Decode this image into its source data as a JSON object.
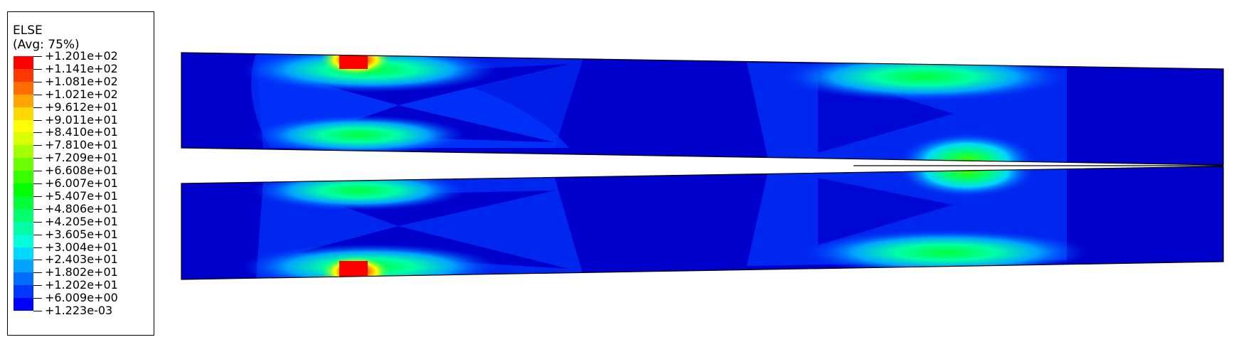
{
  "legend": {
    "variable": "ELSE",
    "averaging": "(Avg: 75%)",
    "ticks": [
      "+1.201e+02",
      "+1.141e+02",
      "+1.081e+02",
      "+1.021e+02",
      "+9.612e+01",
      "+9.011e+01",
      "+8.410e+01",
      "+7.810e+01",
      "+7.209e+01",
      "+6.608e+01",
      "+6.007e+01",
      "+5.407e+01",
      "+4.806e+01",
      "+4.205e+01",
      "+3.605e+01",
      "+3.004e+01",
      "+2.403e+01",
      "+1.802e+01",
      "+1.202e+01",
      "+6.009e+00",
      "+1.223e-03"
    ],
    "colors": [
      "#ff0000",
      "#ff3700",
      "#ff6d00",
      "#ffa400",
      "#ffda00",
      "#ffff00",
      "#d9ff00",
      "#a4ff00",
      "#6dff00",
      "#37ff00",
      "#00ff00",
      "#00ff37",
      "#00ff6d",
      "#00ffa4",
      "#00ffda",
      "#00d9ff",
      "#00a4ff",
      "#006dff",
      "#0037ff",
      "#0000ff"
    ]
  }
}
